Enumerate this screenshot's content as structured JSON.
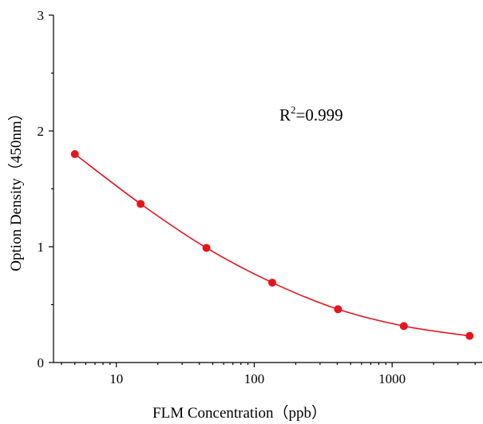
{
  "chart_data": {
    "type": "scatter",
    "xlabel": "FLM  Concentration（ppb）",
    "ylabel": "Option Density（450nm）",
    "x_scale": "log",
    "xlim": [
      3.5,
      4500
    ],
    "ylim": [
      0,
      3
    ],
    "x_ticks": [
      {
        "value": 10,
        "label": "10"
      },
      {
        "value": 100,
        "label": "100"
      },
      {
        "value": 1000,
        "label": "1000"
      }
    ],
    "y_ticks": [
      {
        "value": 0,
        "label": "0"
      },
      {
        "value": 1,
        "label": "1"
      },
      {
        "value": 2,
        "label": "2"
      },
      {
        "value": 3,
        "label": "3"
      }
    ],
    "grid": false,
    "series": [
      {
        "color": "#e8141c",
        "points": [
          {
            "x": 5,
            "y": 1.8
          },
          {
            "x": 15,
            "y": 1.37
          },
          {
            "x": 45,
            "y": 0.99
          },
          {
            "x": 135,
            "y": 0.69
          },
          {
            "x": 405,
            "y": 0.46
          },
          {
            "x": 1215,
            "y": 0.315
          },
          {
            "x": 3645,
            "y": 0.23
          }
        ],
        "fit_line": true
      }
    ],
    "annotation": {
      "base": "R",
      "superscript": "2",
      "rest": "=0.999"
    }
  }
}
